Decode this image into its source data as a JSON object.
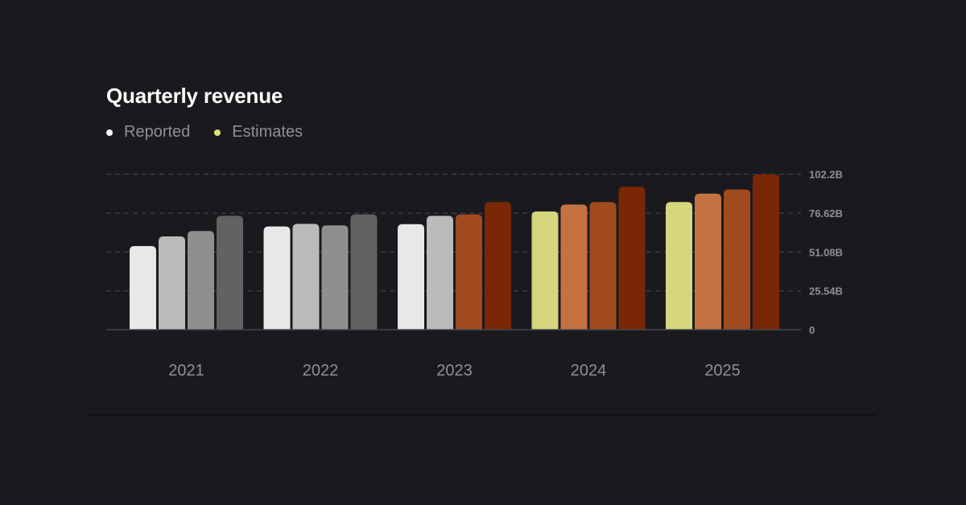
{
  "chart_data": {
    "type": "bar",
    "title": "Quarterly revenue",
    "legend": [
      {
        "label": "Reported",
        "color": "#ffffff"
      },
      {
        "label": "Estimates",
        "color": "#e0e07a"
      }
    ],
    "legend_placement": "top-left",
    "categories": [
      "2021",
      "2022",
      "2023",
      "2024",
      "2025"
    ],
    "quarters_per_year": 4,
    "values": [
      [
        55.0,
        61.3,
        64.9,
        74.9
      ],
      [
        67.9,
        69.6,
        68.6,
        75.8
      ],
      [
        69.4,
        74.9,
        75.8,
        83.9
      ],
      [
        77.7,
        82.3,
        83.9,
        94.0
      ],
      [
        83.9,
        89.5,
        92.2,
        102.2
      ]
    ],
    "status": [
      [
        "reported",
        "reported",
        "reported",
        "reported"
      ],
      [
        "reported",
        "reported",
        "reported",
        "reported"
      ],
      [
        "reported",
        "reported",
        "estimate",
        "estimate"
      ],
      [
        "estimate",
        "estimate",
        "estimate",
        "estimate"
      ],
      [
        "estimate",
        "estimate",
        "estimate",
        "estimate"
      ]
    ],
    "reported_colors": [
      "#e8e8e8",
      "#bbbbbb",
      "#8f8f8f",
      "#626262"
    ],
    "estimate_colors": [
      "#d6d67f",
      "#c47242",
      "#a04a1e",
      "#7a2705"
    ],
    "yticks": [
      "0",
      "25.54B",
      "51.08B",
      "76.62B",
      "102.2B"
    ],
    "ytick_values": [
      0,
      25.54,
      51.08,
      76.62,
      102.2
    ],
    "ylim": [
      0,
      102.2
    ],
    "y_axis_side": "right",
    "grid": true,
    "unit": "B"
  }
}
